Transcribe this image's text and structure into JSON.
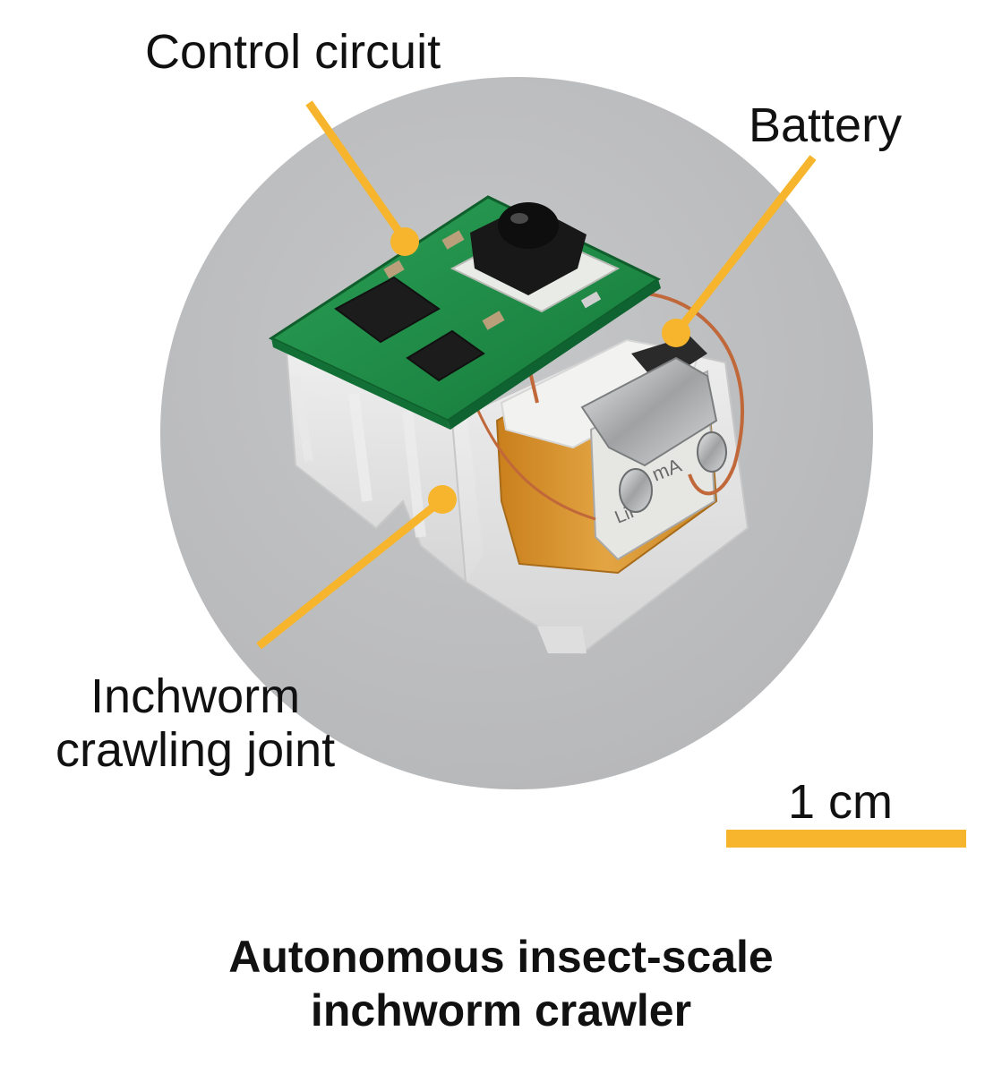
{
  "labels": {
    "control_circuit": "Control circuit",
    "battery": "Battery",
    "joint_line1": "Inchworm",
    "joint_line2": "crawling joint"
  },
  "scale_bar": {
    "label": "1 cm"
  },
  "caption": {
    "line1": "Autonomous insect-scale",
    "line2": "inchworm crawler"
  },
  "battery_text": {
    "capacity": "mA",
    "chem": "LiP"
  },
  "colors": {
    "background": "#ffffff",
    "disc": "#bdbec0",
    "leader_lines": "#f6b52c",
    "pcb_green": "#1f8a45",
    "battery_orange": "#d9962d",
    "text": "#111111"
  }
}
